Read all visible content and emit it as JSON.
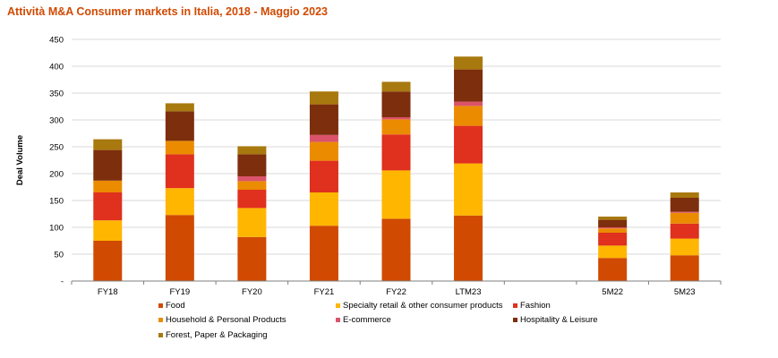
{
  "chart_data": {
    "type": "bar",
    "stacked": true,
    "title": "Attività M&A Consumer markets in Italia, 2018 - Maggio 2023",
    "ylabel": "Deal Volume",
    "ylim": [
      0,
      450
    ],
    "yticks": [
      0,
      50,
      100,
      150,
      200,
      250,
      300,
      350,
      400,
      450
    ],
    "ytick_labels": [
      "-",
      "50",
      "100",
      "150",
      "200",
      "250",
      "300",
      "350",
      "400",
      "450"
    ],
    "grid": true,
    "legend_position": "bottom",
    "categories": [
      "FY18",
      "FY19",
      "FY20",
      "FY21",
      "FY22",
      "LTM23",
      "",
      "5M22",
      "5M23"
    ],
    "series": [
      {
        "name": "Food",
        "color": "#d04a02",
        "values": [
          75,
          123,
          82,
          103,
          116,
          122,
          null,
          43,
          48
        ]
      },
      {
        "name": "Specialty retail & other consumer products",
        "color": "#ffb600",
        "values": [
          38,
          50,
          54,
          62,
          90,
          97,
          null,
          23,
          31
        ]
      },
      {
        "name": "Fashion",
        "color": "#e0301e",
        "values": [
          52,
          63,
          34,
          59,
          67,
          70,
          null,
          24,
          28
        ]
      },
      {
        "name": "Household & Personal Products",
        "color": "#eb8c00",
        "values": [
          22,
          25,
          16,
          35,
          28,
          37,
          null,
          8,
          20
        ]
      },
      {
        "name": "E-commerce",
        "color": "#db536a",
        "values": [
          0,
          0,
          9,
          13,
          4,
          8,
          null,
          2,
          2
        ]
      },
      {
        "name": "Hospitality & Leisure",
        "color": "#7d2e0d",
        "values": [
          57,
          55,
          41,
          57,
          48,
          60,
          null,
          14,
          26
        ]
      },
      {
        "name": "Forest, Paper & Packaging",
        "color": "#a8790f",
        "values": [
          20,
          15,
          15,
          24,
          18,
          24,
          null,
          6,
          10
        ]
      }
    ]
  }
}
